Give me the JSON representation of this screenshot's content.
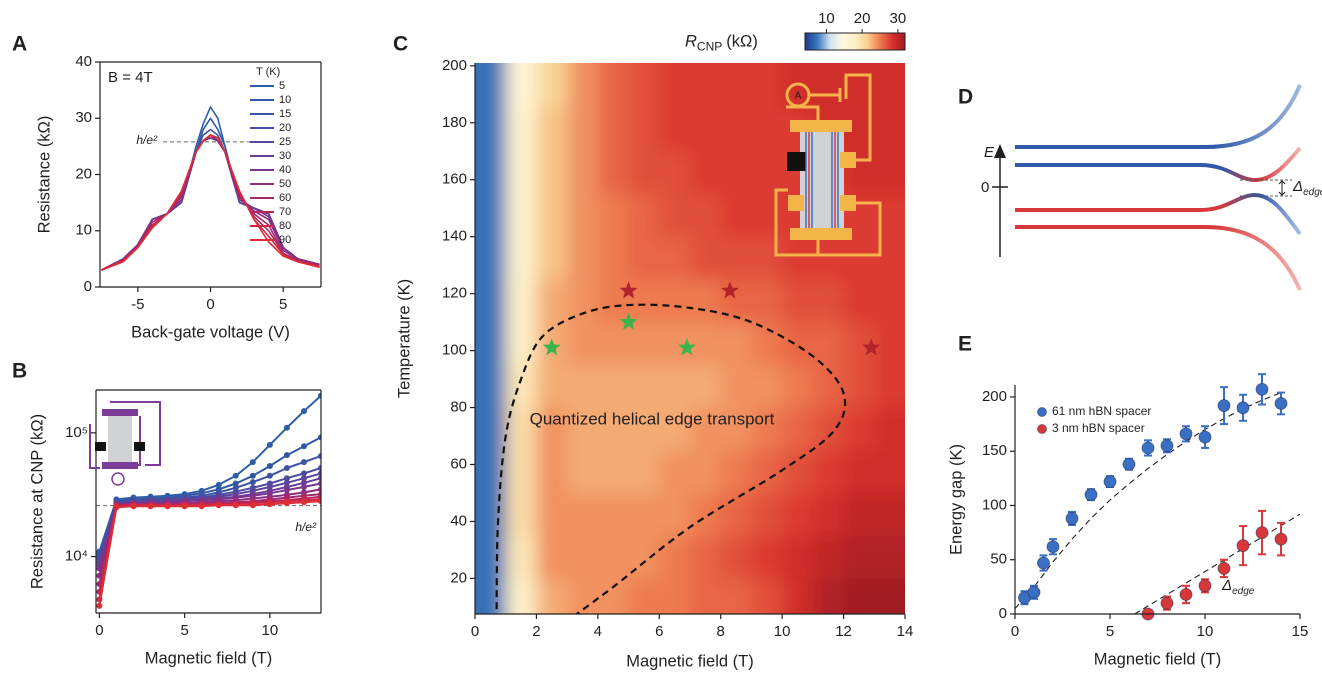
{
  "chart_data": [
    {
      "type": "line",
      "panel": "A",
      "xlabel": "Back-gate voltage (V)",
      "ylabel": "Resistance (kΩ)",
      "xlim": [
        -7.6,
        7.6
      ],
      "ylim": [
        0,
        40
      ],
      "xticks": [
        -5,
        0,
        5
      ],
      "yticks": [
        0,
        10,
        20,
        30,
        40
      ],
      "x": [
        -7.5,
        -6,
        -5,
        -4,
        -3,
        -2,
        -1,
        -0.5,
        0,
        0.5,
        1,
        2,
        3,
        4,
        5,
        6,
        7.5
      ],
      "annotation": "B = 4T",
      "hline": 25.8,
      "hline_label": "h/e²",
      "legend_title": "T (K)",
      "series": [
        {
          "name": "5",
          "color": "#2f5fa9",
          "values": [
            3,
            5,
            7.5,
            12,
            13,
            15,
            25,
            29,
            32,
            30,
            25,
            15,
            14,
            13,
            7,
            5,
            4
          ]
        },
        {
          "name": "10",
          "color": "#3158a6",
          "values": [
            3,
            5,
            7.5,
            12,
            13,
            15,
            24,
            28,
            30,
            28,
            25,
            15,
            14,
            13,
            7,
            5,
            4
          ]
        },
        {
          "name": "15",
          "color": "#3d52a3",
          "values": [
            3,
            5,
            7.5,
            12,
            13,
            15,
            24,
            27,
            28,
            27,
            24,
            15,
            14,
            13,
            7,
            5,
            4
          ]
        },
        {
          "name": "20",
          "color": "#4a4ca1",
          "values": [
            3,
            5,
            7.5,
            12,
            13,
            15,
            24,
            26,
            27,
            26,
            24,
            15,
            14,
            13,
            7,
            5,
            4
          ]
        },
        {
          "name": "25",
          "color": "#5a459d",
          "values": [
            3,
            5,
            7.5,
            12,
            13,
            15,
            24,
            26,
            26.5,
            26,
            24,
            15,
            14,
            13,
            7,
            5,
            4
          ]
        },
        {
          "name": "30",
          "color": "#6a3e98",
          "values": [
            3,
            5,
            7.5,
            12,
            13,
            15,
            24,
            26,
            26.5,
            26,
            24,
            15,
            14,
            13,
            7,
            5,
            4
          ]
        },
        {
          "name": "40",
          "color": "#7a358e",
          "values": [
            3,
            5,
            7.5,
            12,
            13,
            15.5,
            24,
            26,
            26.5,
            26,
            24,
            15.5,
            14,
            12.5,
            7,
            5,
            4
          ]
        },
        {
          "name": "50",
          "color": "#8b2d80",
          "values": [
            3,
            5,
            7.5,
            12,
            13,
            16,
            24,
            26,
            27,
            26,
            24,
            16,
            13.5,
            12,
            6.5,
            5,
            4
          ]
        },
        {
          "name": "60",
          "color": "#a02a6c",
          "values": [
            3,
            4.8,
            7.2,
            11.5,
            13,
            16,
            24,
            26,
            27,
            26.5,
            24,
            16,
            13,
            11,
            6,
            4.8,
            4
          ]
        },
        {
          "name": "70",
          "color": "#b8275a",
          "values": [
            3,
            4.7,
            7,
            11,
            13,
            16.5,
            24,
            26,
            27,
            26.5,
            24,
            16.5,
            12.5,
            10,
            6,
            4.6,
            3.8
          ]
        },
        {
          "name": "80",
          "color": "#cc2748",
          "values": [
            3,
            4.6,
            7,
            10.8,
            13,
            17,
            24,
            26,
            27,
            26.5,
            24,
            17,
            12,
            9,
            5.8,
            4.5,
            3.6
          ]
        },
        {
          "name": "90",
          "color": "#e02d35",
          "values": [
            3,
            4.5,
            7,
            10.5,
            13,
            17,
            24,
            26,
            27,
            26.5,
            24,
            17,
            12,
            8,
            5.5,
            4.5,
            3.5
          ]
        }
      ]
    },
    {
      "type": "line",
      "panel": "B",
      "xlabel": "Magnetic field (T)",
      "ylabel": "Resistance at CNP (kΩ)",
      "log_y": true,
      "markers": true,
      "xlim": [
        -0.2,
        13
      ],
      "ylim": [
        3500,
        222000
      ],
      "xticks": [
        0,
        5,
        10
      ],
      "yticks": [
        {
          "value": 10000,
          "label": "10⁴"
        },
        {
          "value": 100000,
          "label": "10⁵"
        }
      ],
      "x": [
        0,
        1,
        2,
        3,
        4,
        5,
        6,
        7,
        8,
        9,
        10,
        11,
        12,
        13
      ],
      "hline": 25813,
      "hline_label": "h/e²",
      "series": [
        {
          "color": "#2f5fa9",
          "values": [
            11000,
            29000,
            30000,
            30500,
            31000,
            32000,
            34000,
            38000,
            45000,
            58000,
            80000,
            110000,
            150000,
            200000
          ]
        },
        {
          "color": "#3158a6",
          "values": [
            10500,
            28000,
            29000,
            29500,
            30000,
            31000,
            32500,
            35000,
            39000,
            45000,
            54000,
            66000,
            78000,
            92000
          ]
        },
        {
          "color": "#3d52a3",
          "values": [
            10000,
            27500,
            28500,
            29000,
            29500,
            30000,
            31000,
            33000,
            36000,
            40000,
            45000,
            52000,
            58000,
            65000
          ]
        },
        {
          "color": "#4a4ca1",
          "values": [
            9500,
            27000,
            28000,
            28500,
            29000,
            29500,
            30000,
            31500,
            33500,
            36000,
            39000,
            43000,
            47000,
            52000
          ]
        },
        {
          "color": "#5a459d",
          "values": [
            9000,
            27000,
            27500,
            28000,
            28500,
            29000,
            29500,
            30500,
            32000,
            34000,
            36500,
            39500,
            43000,
            47000
          ]
        },
        {
          "color": "#6a3e98",
          "values": [
            8500,
            26500,
            27000,
            27500,
            28000,
            28500,
            29000,
            29500,
            30500,
            32000,
            34000,
            36500,
            39500,
            43000
          ]
        },
        {
          "color": "#7a358e",
          "values": [
            8000,
            26500,
            27000,
            27000,
            27500,
            28000,
            28500,
            29000,
            30000,
            31000,
            32500,
            34500,
            36500,
            39000
          ]
        },
        {
          "color": "#8b2d80",
          "values": [
            7000,
            26000,
            26500,
            26500,
            27000,
            27000,
            27500,
            28000,
            28500,
            29500,
            30500,
            31500,
            33000,
            35000
          ]
        },
        {
          "color": "#a02a6c",
          "values": [
            6000,
            26000,
            26500,
            26500,
            26500,
            26500,
            27000,
            27000,
            27500,
            28000,
            29000,
            30000,
            31000,
            32000
          ]
        },
        {
          "color": "#b8275a",
          "values": [
            5200,
            26000,
            26000,
            26000,
            26000,
            26500,
            26500,
            26500,
            27000,
            27500,
            28000,
            28500,
            29500,
            30500
          ]
        },
        {
          "color": "#cc2748",
          "values": [
            4500,
            25500,
            26000,
            26000,
            26000,
            26000,
            26000,
            26500,
            26500,
            27000,
            27500,
            28000,
            28500,
            29000
          ]
        },
        {
          "color": "#e02d35",
          "values": [
            4000,
            25000,
            25500,
            25500,
            25500,
            25500,
            25500,
            26000,
            26000,
            26000,
            26500,
            27000,
            27500,
            28000
          ]
        }
      ]
    },
    {
      "type": "heatmap",
      "panel": "C",
      "xlabel": "Magnetic field (T)",
      "ylabel": "Temperature (K)",
      "xlim": [
        0,
        14
      ],
      "ylim": [
        7.5,
        201
      ],
      "xticks": [
        0,
        2,
        4,
        6,
        8,
        10,
        12,
        14
      ],
      "yticks": [
        20,
        40,
        60,
        80,
        100,
        120,
        140,
        160,
        180,
        200
      ],
      "xbins": [
        0,
        1,
        2,
        3,
        4,
        5,
        6,
        7,
        8,
        9,
        10,
        11,
        12,
        13,
        14
      ],
      "ybins": [
        5,
        20,
        35,
        50,
        65,
        80,
        95,
        110,
        125,
        140,
        155,
        170,
        185,
        200
      ],
      "z": [
        [
          7,
          18,
          23,
          24,
          24,
          25,
          25,
          26,
          26,
          27,
          29,
          31,
          32,
          32
        ],
        [
          7,
          19,
          24,
          24,
          24,
          24,
          25,
          26,
          27,
          28,
          29,
          30,
          31,
          31
        ],
        [
          7,
          20,
          24,
          24,
          24,
          24,
          24,
          25,
          26,
          27,
          28,
          29,
          30,
          30
        ],
        [
          7,
          20,
          24,
          23,
          23,
          23,
          24,
          24,
          25,
          26,
          27,
          28,
          29,
          29
        ],
        [
          7,
          20,
          24,
          23,
          23,
          23,
          23,
          24,
          24,
          25,
          26,
          27,
          28,
          29
        ],
        [
          7,
          19,
          23,
          23,
          23,
          23,
          23,
          23,
          24,
          24,
          25,
          26,
          27,
          28
        ],
        [
          7,
          18,
          23,
          24,
          24,
          24,
          24,
          24,
          24,
          25,
          26,
          26,
          27,
          28
        ],
        [
          7,
          18,
          23,
          24,
          25,
          25,
          25,
          25,
          26,
          26,
          27,
          27,
          28,
          28
        ],
        [
          7,
          17,
          22,
          24,
          25,
          26,
          26,
          27,
          27,
          27,
          28,
          28,
          28,
          28
        ],
        [
          7,
          17,
          22,
          24,
          25,
          26,
          27,
          27,
          28,
          28,
          28,
          28,
          28,
          28
        ],
        [
          7,
          17,
          22,
          24,
          26,
          27,
          27,
          28,
          28,
          28,
          28,
          28,
          29,
          29
        ],
        [
          7,
          17,
          22,
          24,
          26,
          27,
          28,
          28,
          28,
          28,
          28,
          29,
          29,
          29
        ],
        [
          7,
          16,
          21,
          24,
          26,
          27,
          28,
          28,
          28,
          28,
          29,
          29,
          29,
          29
        ]
      ],
      "clim": [
        4,
        32
      ],
      "cticks": [
        10,
        20,
        30
      ],
      "colorscale": [
        "#1a3a8c",
        "#3c78bf",
        "#cfe3f1",
        "#fff8e0",
        "#fdf0c8",
        "#f8cf8e",
        "#ee7a4f",
        "#d8302c",
        "#a11a22"
      ],
      "colorbar_label": {
        "symbol": "R",
        "subscript": "CNP",
        "unit": "(kΩ)"
      },
      "annotation": "Quantized helical edge transport",
      "boundary": {
        "x": [
          0.7,
          0.75,
          1,
          1.5,
          2.2,
          3.5,
          5,
          7,
          9,
          11,
          12,
          11.7,
          10,
          7,
          4.5,
          3
        ],
        "y": [
          5,
          40,
          70,
          90,
          105,
          113,
          116,
          115,
          110,
          98,
          85,
          72,
          58,
          38,
          17,
          5
        ]
      },
      "stars": [
        {
          "color": "#b3232b",
          "x": [
            5,
            8.3,
            12.9
          ],
          "y": [
            121,
            121,
            101
          ]
        },
        {
          "color": "#3cb44b",
          "x": [
            2.5,
            5,
            6.9
          ],
          "y": [
            101,
            110,
            101
          ]
        }
      ]
    },
    {
      "type": "diagram",
      "panel": "D",
      "axis_label": "E",
      "zero_label": "0",
      "gap_symbol": "Δ",
      "gap_subscript": "edge"
    },
    {
      "type": "scatter",
      "panel": "E",
      "xlabel": "Magnetic field (T)",
      "ylabel": "Energy gap (K)",
      "xlim": [
        0,
        15
      ],
      "ylim": [
        0,
        211
      ],
      "xticks": [
        0,
        5,
        10,
        15
      ],
      "yticks": [
        0,
        50,
        100,
        150,
        200
      ],
      "annotation": {
        "symbol": "Δ",
        "subscript": "edge"
      },
      "series": [
        {
          "name": "61 nm hBN spacer",
          "color": "#3b6fc6",
          "x": [
            0.5,
            1,
            1.5,
            2,
            3,
            4,
            5,
            6,
            7,
            8,
            9,
            10,
            11,
            12,
            13,
            14
          ],
          "values": [
            15,
            20,
            47,
            62,
            88,
            110,
            122,
            138,
            153,
            155,
            166,
            163,
            192,
            190,
            207,
            194
          ],
          "errors": [
            6,
            6,
            7,
            7,
            6,
            5,
            5,
            5,
            7,
            6,
            7,
            10,
            17,
            12,
            14,
            10
          ],
          "fit": {
            "x": [
              0,
              1,
              2,
              3,
              4,
              5,
              6,
              7,
              8,
              9,
              10,
              11,
              12,
              13,
              14
            ],
            "y": [
              5,
              25,
              48,
              69,
              88,
              105,
              120,
              134,
              147,
              159,
              170,
              180,
              189,
              197,
              204
            ]
          }
        },
        {
          "name": "3 nm hBN spacer",
          "color": "#d8383a",
          "x": [
            7,
            8,
            9,
            10,
            11,
            12,
            13,
            14
          ],
          "values": [
            0,
            10,
            18,
            26,
            42,
            63,
            75,
            69
          ],
          "errors": [
            3,
            6,
            8,
            6,
            8,
            18,
            20,
            15
          ],
          "fit": {
            "x": [
              6.3,
              15
            ],
            "y": [
              0,
              92
            ]
          }
        }
      ]
    }
  ]
}
